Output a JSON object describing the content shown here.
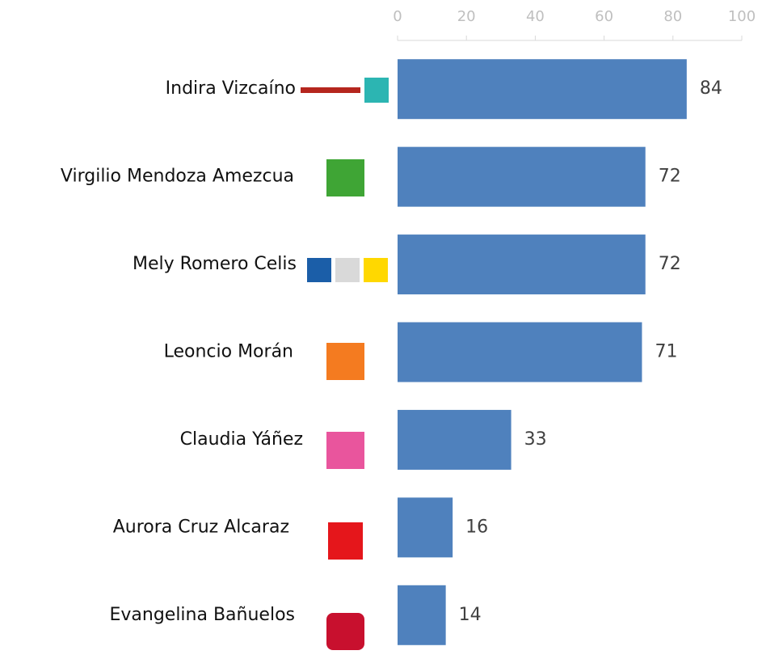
{
  "chart_data": {
    "type": "bar",
    "orientation": "horizontal",
    "categories": [
      "Indira Vizcaíno",
      "Virgilio Mendoza Amezcua",
      "Mely Romero Celis",
      "Leoncio Morán",
      "Claudia Yáñez",
      "Aurora Cruz Alcaraz",
      "Evangelina Bañuelos"
    ],
    "values": [
      84,
      72,
      72,
      71,
      33,
      16,
      14
    ],
    "color": "#4f81bd",
    "xlim": [
      0,
      100
    ],
    "xticks": [
      0,
      20,
      40,
      60,
      80,
      100
    ],
    "grid": false
  }
}
